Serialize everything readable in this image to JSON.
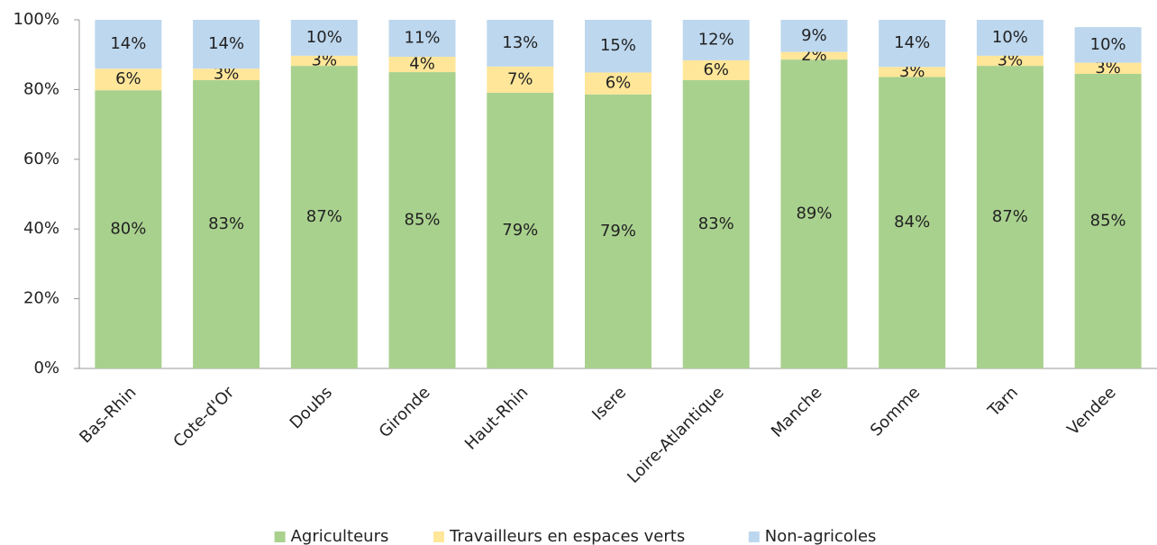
{
  "chart_data": {
    "type": "stacked_bar",
    "categories": [
      "Bas-Rhin",
      "Cote-d'Or",
      "Doubs",
      "Gironde",
      "Haut-Rhin",
      "Isere",
      "Loire-Atlantique",
      "Manche",
      "Somme",
      "Tarn",
      "Vendee"
    ],
    "series": [
      {
        "name": "Agriculteurs",
        "color": "#a9d18e",
        "values": [
          79.8,
          82.7,
          86.8,
          85.0,
          79.1,
          78.6,
          82.7,
          88.6,
          83.6,
          86.8,
          84.5
        ],
        "value_labels": [
          "80%",
          "83%",
          "87%",
          "85%",
          "79%",
          "79%",
          "83%",
          "89%",
          "84%",
          "87%",
          "85%"
        ]
      },
      {
        "name": "Travailleurs en espaces verts",
        "color": "#ffe699",
        "values": [
          6.2,
          3.3,
          2.9,
          4.4,
          7.5,
          6.3,
          5.7,
          2.2,
          2.9,
          2.9,
          3.2
        ],
        "value_labels": [
          "6%",
          "3%",
          "3%",
          "4%",
          "7%",
          "6%",
          "6%",
          "2%",
          "3%",
          "3%",
          "3%"
        ]
      },
      {
        "name": "Non-agricoles",
        "color": "#bdd7ee",
        "values": [
          14.0,
          14.0,
          10.3,
          10.6,
          13.4,
          15.1,
          11.6,
          9.2,
          13.5,
          10.3,
          10.2
        ],
        "value_labels": [
          "14%",
          "14%",
          "10%",
          "11%",
          "13%",
          "15%",
          "12%",
          "9%",
          "14%",
          "10%",
          "10%"
        ]
      }
    ],
    "ylim": [
      0,
      100
    ],
    "yticks": [
      {
        "value": 0,
        "label": "0%"
      },
      {
        "value": 20,
        "label": "20%"
      },
      {
        "value": 40,
        "label": "40%"
      },
      {
        "value": 60,
        "label": "60%"
      },
      {
        "value": 80,
        "label": "80%"
      },
      {
        "value": 100,
        "label": "100%"
      }
    ],
    "grid": false,
    "legend": "bottom"
  }
}
